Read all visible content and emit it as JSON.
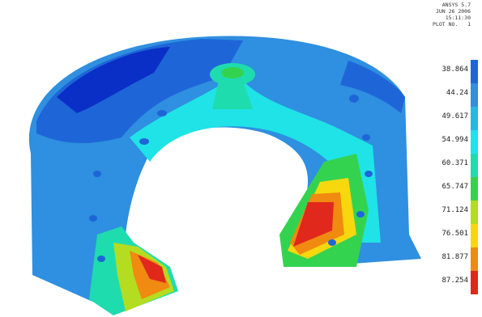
{
  "plot_info": [
    "ANSYS 5.7",
    "JUN 26 2006",
    "15:11:30",
    "PLOT NO.   1"
  ],
  "legend": {
    "labels": [
      "38.864",
      "44.24",
      "49.617",
      "54.994",
      "60.371",
      "65.747",
      "71.124",
      "76.501",
      "81.877",
      "87.254"
    ],
    "colors": [
      "#0a2fc6",
      "#1e66d8",
      "#2f8fe0",
      "#24b8e4",
      "#1fe3e6",
      "#1fdcae",
      "#34d34f",
      "#b4dc20",
      "#f7d80e",
      "#f08a10",
      "#e0281c"
    ]
  }
}
